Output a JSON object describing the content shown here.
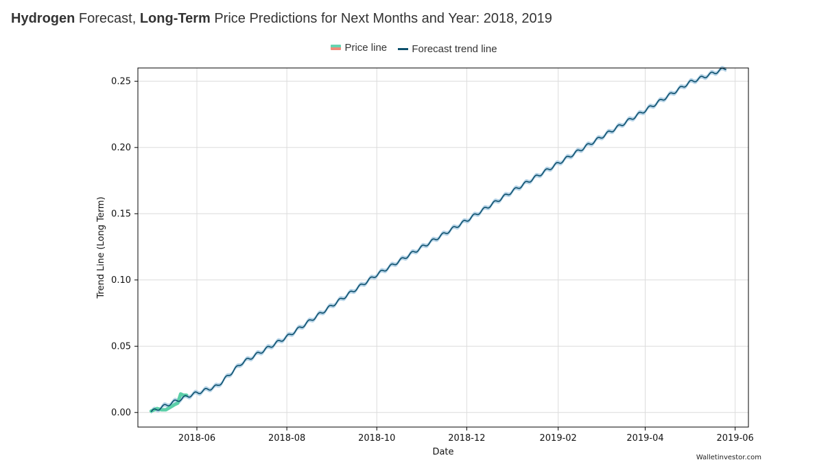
{
  "page": {
    "title_parts": [
      {
        "text": "Hydrogen",
        "bold": true
      },
      {
        "text": " Forecast, ",
        "bold": false
      },
      {
        "text": "Long-Term",
        "bold": true
      },
      {
        "text": " Price Predictions for Next Months and Year: 2018, 2019",
        "bold": false
      }
    ],
    "watermark": "Walletinvestor.com"
  },
  "legend": {
    "price_label": "Price line",
    "trend_label": "Forecast trend line"
  },
  "colors": {
    "price_line": "#5ccfa8",
    "price_line_alt": "#f08b7a",
    "trend_line": "#0b4f6c",
    "band": "#a9cbe3",
    "grid": "#dcdcdc"
  },
  "chart_data": {
    "type": "line",
    "title": "",
    "xlabel": "Date",
    "ylabel": "Trend Line (Long Term)",
    "x_range": [
      "2018-04-22",
      "2019-06-10"
    ],
    "ylim": [
      -0.011,
      0.26
    ],
    "x_ticks": [
      "2018-06",
      "2018-08",
      "2018-10",
      "2018-12",
      "2019-02",
      "2019-04",
      "2019-06"
    ],
    "y_ticks": [
      "0.00",
      "0.05",
      "0.10",
      "0.15",
      "0.20",
      "0.25"
    ],
    "y_tick_values": [
      0,
      0.05,
      0.1,
      0.15,
      0.2,
      0.25
    ],
    "grid": true,
    "legend_position": "top-center",
    "series": [
      {
        "name": "Price line",
        "x": [
          "2018-05-01",
          "2018-05-03",
          "2018-05-05",
          "2018-05-08",
          "2018-05-11",
          "2018-05-14",
          "2018-05-17",
          "2018-05-19",
          "2018-05-21",
          "2018-05-23",
          "2018-05-25"
        ],
        "values": [
          0.001,
          0.002,
          0.003,
          0.002,
          0.002,
          0.004,
          0.006,
          0.007,
          0.014,
          0.013,
          0.013
        ]
      },
      {
        "name": "Forecast trend line",
        "x": [
          "2018-05-01",
          "2018-05-25",
          "2018-06-15",
          "2018-07-01",
          "2018-08-01",
          "2018-09-01",
          "2018-10-01",
          "2018-11-01",
          "2018-12-01",
          "2019-01-01",
          "2019-02-01",
          "2019-03-01",
          "2019-04-01",
          "2019-05-01",
          "2019-05-26"
        ],
        "values": [
          0.0005,
          0.012,
          0.02,
          0.037,
          0.057,
          0.081,
          0.104,
          0.125,
          0.145,
          0.167,
          0.188,
          0.207,
          0.228,
          0.249,
          0.26
        ],
        "band_halfwidth": 0.0017,
        "weekly_wiggle": 0.0012
      }
    ]
  }
}
